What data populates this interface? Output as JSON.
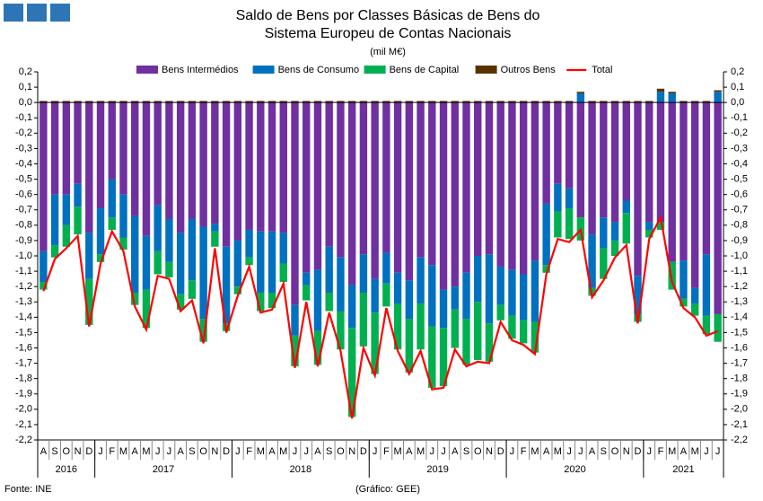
{
  "chart_data": {
    "type": "bar",
    "stacked": true,
    "title_lines": [
      "Saldo de Bens por Classes Básicas de Bens do",
      "Sistema Europeu de Contas Nacionais"
    ],
    "subtitle": "(mil M€)",
    "source": "Fonte: INE",
    "credit": "(Gráfico: GEE)",
    "categories": [
      "A",
      "S",
      "O",
      "N",
      "D",
      "J",
      "F",
      "M",
      "A",
      "M",
      "J",
      "J",
      "A",
      "S",
      "O",
      "N",
      "D",
      "J",
      "F",
      "M",
      "A",
      "M",
      "J",
      "J",
      "A",
      "S",
      "O",
      "N",
      "D",
      "J",
      "F",
      "M",
      "A",
      "M",
      "J",
      "J",
      "A",
      "S",
      "O",
      "N",
      "D",
      "J",
      "F",
      "M",
      "A",
      "M",
      "J",
      "J",
      "A",
      "S",
      "O",
      "N",
      "D",
      "J",
      "F",
      "M",
      "A",
      "M",
      "J",
      "J"
    ],
    "years": [
      "2016",
      "2017",
      "2018",
      "2019",
      "2020",
      "2021"
    ],
    "ylim": [
      -2.2,
      0.2
    ],
    "yticks": [
      {
        "value": 0.2,
        "label": "0,2"
      },
      {
        "value": 0.1,
        "label": "0,1"
      },
      {
        "value": 0,
        "label": "0,0"
      },
      {
        "value": -0.1,
        "label": "-0,1"
      },
      {
        "value": -0.2,
        "label": "-0,2"
      },
      {
        "value": -0.3,
        "label": "-0,3"
      },
      {
        "value": -0.4,
        "label": "-0,4"
      },
      {
        "value": -0.5,
        "label": "-0,5"
      },
      {
        "value": -0.6,
        "label": "-0,6"
      },
      {
        "value": -0.7,
        "label": "-0,7"
      },
      {
        "value": -0.8,
        "label": "-0,8"
      },
      {
        "value": -0.9,
        "label": "-0,9"
      },
      {
        "value": -1,
        "label": "-1,0"
      },
      {
        "value": -1.1,
        "label": "-1,1"
      },
      {
        "value": -1.2,
        "label": "-1,2"
      },
      {
        "value": -1.3,
        "label": "-1,3"
      },
      {
        "value": -1.4,
        "label": "-1,4"
      },
      {
        "value": -1.5,
        "label": "-1,5"
      },
      {
        "value": -1.6,
        "label": "-1,6"
      },
      {
        "value": -1.7,
        "label": "-1,7"
      },
      {
        "value": -1.8,
        "label": "-1,8"
      },
      {
        "value": -1.9,
        "label": "-1,9"
      },
      {
        "value": -2,
        "label": "-2,0"
      },
      {
        "value": -2.1,
        "label": "-2,1"
      },
      {
        "value": -2.2,
        "label": "-2,2"
      }
    ],
    "grid": false,
    "legend": "top",
    "series": [
      {
        "name": "Bens Intermédios",
        "color": "#7030a0",
        "values": [
          -0.97,
          -0.6,
          -0.6,
          -0.53,
          -0.85,
          -0.69,
          -0.5,
          -0.6,
          -0.74,
          -0.87,
          -0.67,
          -0.76,
          -0.85,
          -0.76,
          -0.81,
          -0.79,
          -0.94,
          -0.9,
          -0.83,
          -0.84,
          -0.84,
          -0.85,
          -1.32,
          -1.11,
          -1.09,
          -0.94,
          -1.01,
          -1.19,
          -0.99,
          -1.15,
          -0.98,
          -1.11,
          -1.16,
          -1.01,
          -1.06,
          -1.22,
          -1.2,
          -1.11,
          -1,
          -0.99,
          -1.07,
          -1.09,
          -1.12,
          -1.03,
          -0.66,
          -0.53,
          -0.56,
          -0.75,
          -0.86,
          -0.75,
          -0.78,
          -0.64,
          -1.13,
          -0.78,
          -0.78,
          -1.04,
          -1.03,
          -1.21,
          -0.99,
          -1.38
        ]
      },
      {
        "name": "Bens de Consumo",
        "color": "#0070c0",
        "values": [
          -0.2,
          -0.33,
          -0.2,
          -0.15,
          -0.3,
          -0.3,
          -0.25,
          -0.28,
          -0.5,
          -0.35,
          -0.3,
          -0.28,
          -0.4,
          -0.4,
          -0.6,
          -0.05,
          -0.5,
          -0.3,
          -0.18,
          -0.4,
          -0.4,
          -0.2,
          -0.2,
          -0.08,
          -0.4,
          -0.3,
          -0.35,
          -0.28,
          -0.25,
          -0.22,
          -0.2,
          -0.2,
          -0.25,
          -0.3,
          -0.4,
          -0.25,
          -0.15,
          -0.3,
          -0.3,
          -0.45,
          -0.25,
          -0.3,
          -0.3,
          -0.4,
          -0.4,
          -0.18,
          -0.13,
          0.06,
          -0.35,
          -0.2,
          -0.12,
          -0.08,
          -0.25,
          -0.05,
          0.07,
          0.06,
          -0.25,
          -0.1,
          -0.4,
          0.07
        ]
      },
      {
        "name": "Bens de Capital",
        "color": "#00b050",
        "values": [
          -0.05,
          -0.08,
          -0.14,
          -0.18,
          -0.3,
          -0.05,
          -0.08,
          -0.08,
          -0.08,
          -0.25,
          -0.15,
          -0.1,
          -0.1,
          -0.12,
          -0.15,
          -0.1,
          -0.05,
          -0.05,
          -0.05,
          -0.12,
          -0.1,
          -0.12,
          -0.2,
          -0.1,
          -0.22,
          -0.12,
          -0.25,
          -0.58,
          -0.35,
          -0.4,
          -0.15,
          -0.3,
          -0.35,
          -0.3,
          -0.4,
          -0.38,
          -0.25,
          -0.3,
          -0.38,
          -0.25,
          -0.1,
          -0.15,
          -0.15,
          -0.2,
          -0.05,
          -0.17,
          -0.2,
          -0.15,
          -0.05,
          -0.2,
          -0.1,
          -0.2,
          -0.05,
          -0.05,
          -0.05,
          -0.18,
          -0.05,
          -0.08,
          -0.12,
          -0.18
        ]
      },
      {
        "name": "Outros Bens",
        "color": "#5a3200",
        "values": [
          0.01,
          0.01,
          0.01,
          0.01,
          0.01,
          0.01,
          0.01,
          0.01,
          0.01,
          0.01,
          0.01,
          0.01,
          0.01,
          0.01,
          0.01,
          0.01,
          0.01,
          0.01,
          0.01,
          0.01,
          0.01,
          0.01,
          0.01,
          0.01,
          0.01,
          0.01,
          0.01,
          0.01,
          0.01,
          0.01,
          0.01,
          0.01,
          0.01,
          0.01,
          0.01,
          0.01,
          0.01,
          0.01,
          0.01,
          0.01,
          0.01,
          0.01,
          0.01,
          0.01,
          0.01,
          0.01,
          0.01,
          0.01,
          0.01,
          0.01,
          0.01,
          0.01,
          0.01,
          0.01,
          0.02,
          0.01,
          0.01,
          0.01,
          0.01,
          0.01
        ]
      },
      {
        "name": "Total",
        "color": "#ff0000",
        "type": "line",
        "values": [
          -1.23,
          -1.02,
          -0.95,
          -0.87,
          -1.46,
          -1.05,
          -0.84,
          -0.97,
          -1.33,
          -1.48,
          -1.13,
          -1.15,
          -1.36,
          -1.29,
          -1.57,
          -0.95,
          -1.5,
          -1.26,
          -1.07,
          -1.37,
          -1.35,
          -1.18,
          -1.73,
          -1.3,
          -1.72,
          -1.37,
          -1.62,
          -2.06,
          -1.6,
          -1.78,
          -1.34,
          -1.62,
          -1.77,
          -1.62,
          -1.87,
          -1.86,
          -1.61,
          -1.72,
          -1.69,
          -1.7,
          -1.43,
          -1.55,
          -1.58,
          -1.64,
          -1.12,
          -0.89,
          -0.91,
          -0.83,
          -1.27,
          -1.16,
          -1.01,
          -0.93,
          -1.44,
          -0.89,
          -0.75,
          -1.17,
          -1.34,
          -1.4,
          -1.52,
          -1.49
        ]
      }
    ]
  }
}
